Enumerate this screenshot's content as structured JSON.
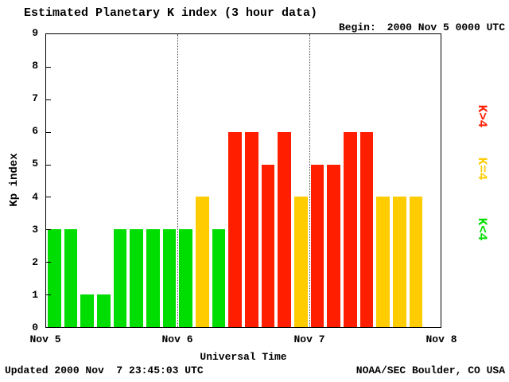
{
  "title": "Estimated Planetary K index (3 hour data)",
  "begin_label": "Begin:",
  "begin_value": "2000 Nov 5 0000 UTC",
  "updated": "Updated 2000 Nov  7 23:45:03 UTC",
  "source": "NOAA/SEC Boulder, CO USA",
  "xlabel": "Universal Time",
  "ylabel": "Kp index",
  "colors": {
    "low": "#00dd00",
    "mid": "#ffcc00",
    "high": "#ff1e00"
  },
  "legend": [
    {
      "label": "K>4",
      "color": "#ff1e00"
    },
    {
      "label": "K=4",
      "color": "#ffcc00"
    },
    {
      "label": "K<4",
      "color": "#00dd00"
    }
  ],
  "chart_data": {
    "type": "bar",
    "title": "Estimated Planetary K index (3 hour data)",
    "xlabel": "Universal Time",
    "ylabel": "Kp index",
    "ylim": [
      0,
      9
    ],
    "y_ticks": [
      0,
      1,
      2,
      3,
      4,
      5,
      6,
      7,
      8,
      9
    ],
    "x_ticks": [
      "Nov 5",
      "Nov 6",
      "Nov 7",
      "Nov 8"
    ],
    "slots_per_day": 8,
    "hours_per_slot": 3,
    "values": [
      3,
      3,
      1,
      1,
      3,
      3,
      3,
      3,
      3,
      4,
      3,
      6,
      6,
      5,
      6,
      4,
      5,
      5,
      6,
      6,
      4,
      4,
      4,
      null
    ],
    "color_rule": "green if Kp<4, yellow if Kp=4, red if Kp>4",
    "grid": "dotted vertical lines at day boundaries",
    "legend_position": "right, rotated"
  }
}
